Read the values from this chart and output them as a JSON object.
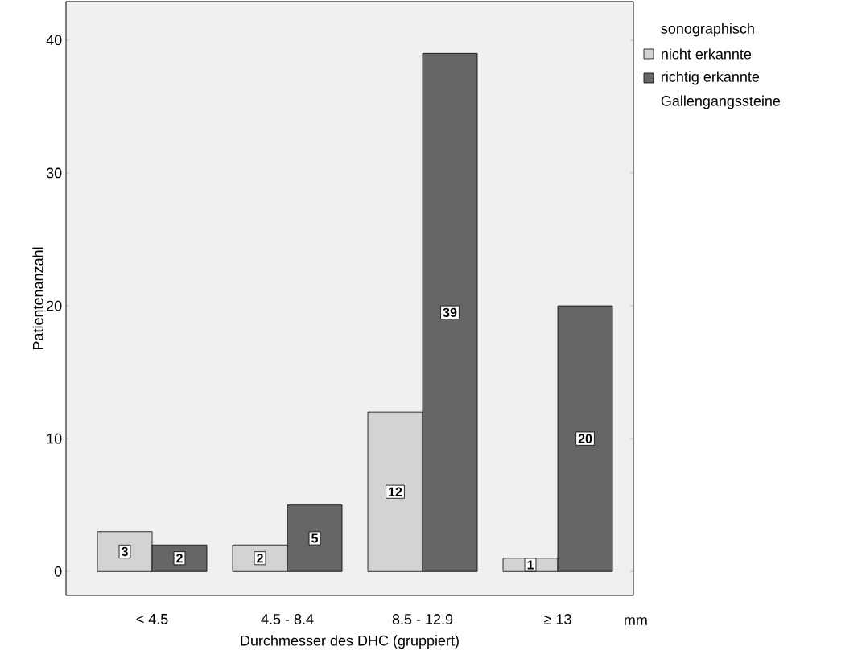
{
  "chart_data": {
    "type": "bar",
    "categories": [
      "< 4.5",
      "4.5 - 8.4",
      "8.5 - 12.9",
      "≥ 13"
    ],
    "series": [
      {
        "name": "nicht erkannte",
        "color": "#d3d3d3",
        "values": [
          3,
          2,
          12,
          1
        ]
      },
      {
        "name": "richtig erkannte",
        "color": "#666666",
        "values": [
          2,
          5,
          39,
          20
        ]
      }
    ],
    "xlabel": "Durchmesser des DHC (gruppiert)",
    "ylabel": "Patientenanzahl",
    "legend_title": "sonographisch",
    "legend": "top right",
    "annotations": [
      "mm",
      "Gallengangssteine"
    ],
    "ylim": [
      -1.8,
      42.9
    ],
    "yticks": [
      0,
      10,
      20,
      30,
      40
    ],
    "data_labels": true,
    "grid": false
  }
}
